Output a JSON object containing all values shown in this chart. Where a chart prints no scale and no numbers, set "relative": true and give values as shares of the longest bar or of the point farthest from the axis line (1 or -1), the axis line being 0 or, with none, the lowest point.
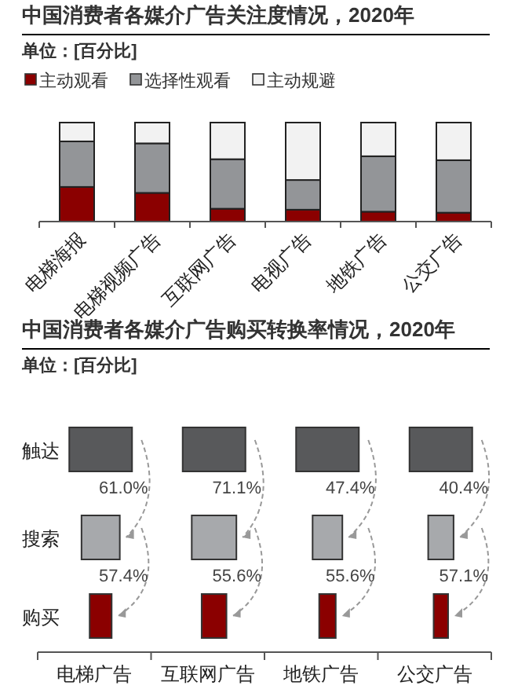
{
  "chart_data": [
    {
      "type": "bar",
      "title": "中国消费者各媒介广告关注度情况，2020年",
      "subtitle": "单位：[百分比]",
      "stacked": true,
      "relative": true,
      "legend": "top left",
      "categories": [
        "电梯海报",
        "电梯视频广告",
        "互联网广告",
        "电视广告",
        "地铁广告",
        "公交广告"
      ],
      "series": [
        {
          "name": "主动观看",
          "color": "#8b0000",
          "values": [
            0.35,
            0.29,
            0.13,
            0.12,
            0.1,
            0.09
          ]
        },
        {
          "name": "选择性观看",
          "color": "#939598",
          "values": [
            0.46,
            0.5,
            0.5,
            0.3,
            0.56,
            0.53
          ]
        },
        {
          "name": "主动规避",
          "color": "#f2f2f2",
          "values": [
            0.19,
            0.21,
            0.37,
            0.58,
            0.34,
            0.38
          ]
        }
      ]
    },
    {
      "type": "other",
      "title": "中国消费者各媒介广告购买转换率情况，2020年",
      "subtitle": "单位：[百分比]",
      "categories": [
        "电梯广告",
        "互联网广告",
        "地铁广告",
        "公交广告"
      ],
      "y_categories": [
        "触达",
        "搜索",
        "购买"
      ],
      "colors": [
        "#58595b",
        "#a7a9ac",
        "#8b0000"
      ],
      "series": [
        {
          "values": [
            61.0,
            71.1,
            47.4,
            40.4
          ],
          "value_labels": [
            "61.0%",
            "71.1%",
            "47.4%",
            "40.4%"
          ]
        },
        {
          "values": [
            57.4,
            55.6,
            55.6,
            57.1
          ],
          "value_labels": [
            "57.4%",
            "55.6%",
            "55.6%",
            "57.1%"
          ]
        }
      ]
    }
  ]
}
